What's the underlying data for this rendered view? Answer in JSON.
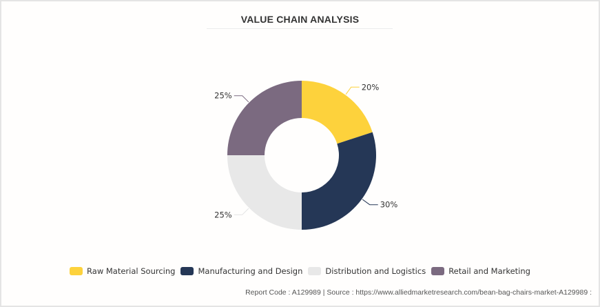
{
  "chart_data": {
    "type": "pie",
    "variant": "donut",
    "title": "VALUE CHAIN ANALYSIS",
    "categories": [
      "Raw Material Sourcing",
      "Manufacturing and Design",
      "Distribution and Logistics",
      "Retail and Marketing"
    ],
    "values": [
      20,
      30,
      25,
      25
    ],
    "labels": [
      "20%",
      "30%",
      "25%",
      "25%"
    ],
    "colors": [
      "#fdd23c",
      "#253756",
      "#e8e8e8",
      "#7b6a80"
    ],
    "start_angle": "top",
    "direction": "clockwise",
    "legend_position": "bottom"
  },
  "footer": {
    "text": "Report Code : A129989  |  Source : https://www.alliedmarketresearch.com/bean-bag-chairs-market-A129989 :"
  }
}
